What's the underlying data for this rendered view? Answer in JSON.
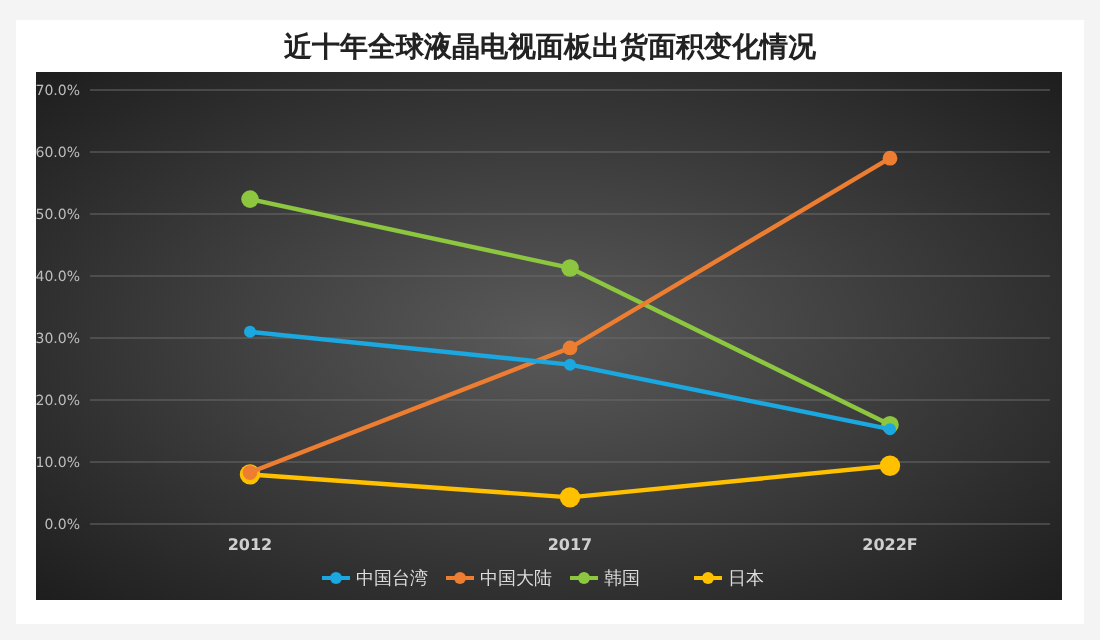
{
  "chart_data": {
    "type": "line",
    "title": "近十年全球液晶电视面板出货面积变化情况",
    "categories": [
      "2012",
      "2017",
      "2022F"
    ],
    "series": [
      {
        "name": "中国台湾",
        "color": "#1ba7e0",
        "values": [
          31.0,
          25.7,
          15.3
        ]
      },
      {
        "name": "中国大陆",
        "color": "#ed7d31",
        "values": [
          8.3,
          28.4,
          59.0
        ]
      },
      {
        "name": "韩国",
        "color": "#8dc63f",
        "values": [
          52.4,
          41.3,
          16.0
        ]
      },
      {
        "name": "日本",
        "color": "#ffc000",
        "values": [
          8.0,
          4.3,
          9.4
        ]
      }
    ],
    "ylim": [
      0,
      70
    ],
    "yticks": [
      {
        "value": 0,
        "label": "0.0%"
      },
      {
        "value": 10,
        "label": "10.0%"
      },
      {
        "value": 20,
        "label": "20.0%"
      },
      {
        "value": 30,
        "label": "30.0%"
      },
      {
        "value": 40,
        "label": "40.0%"
      },
      {
        "value": 50,
        "label": "50.0%"
      },
      {
        "value": 60,
        "label": "60.0%"
      },
      {
        "value": 70,
        "label": "70.0%"
      }
    ],
    "grid": "y",
    "legend": "bottom",
    "marker": "circle",
    "line_style": "solid"
  }
}
